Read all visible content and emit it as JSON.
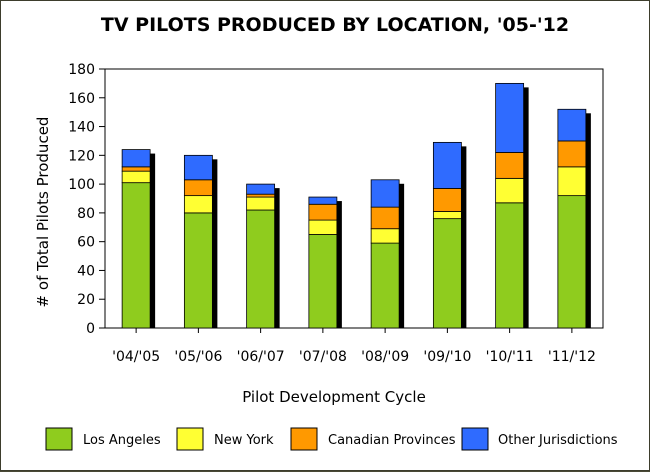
{
  "chart_data": {
    "type": "bar",
    "stacked": true,
    "title": "TV PILOTS PRODUCED BY LOCATION, '05-'12",
    "xlabel": "Pilot Development Cycle",
    "ylabel": "# of Total Pilots Produced",
    "ylim": [
      0,
      180
    ],
    "yticks": [
      0,
      20,
      40,
      60,
      80,
      100,
      120,
      140,
      160,
      180
    ],
    "categories": [
      "'04/'05",
      "'05/'06",
      "'06/'07",
      "'07/'08",
      "'08/'09",
      "'09/'10",
      "'10/'11",
      "'11/'12"
    ],
    "series": [
      {
        "name": "Los Angeles",
        "color": "#8fcc1e",
        "values": [
          101,
          80,
          82,
          65,
          59,
          76,
          87,
          92
        ]
      },
      {
        "name": "New York",
        "color": "#ffff33",
        "values": [
          8,
          12,
          9,
          10,
          10,
          5,
          17,
          20
        ]
      },
      {
        "name": "Canadian Provinces",
        "color": "#ff9900",
        "values": [
          3,
          11,
          2,
          11,
          15,
          16,
          18,
          18
        ]
      },
      {
        "name": "Other Jurisdictions",
        "color": "#2f6bff",
        "values": [
          12,
          17,
          7,
          5,
          19,
          32,
          48,
          22
        ]
      }
    ],
    "grid": false,
    "legend": "bottom"
  }
}
